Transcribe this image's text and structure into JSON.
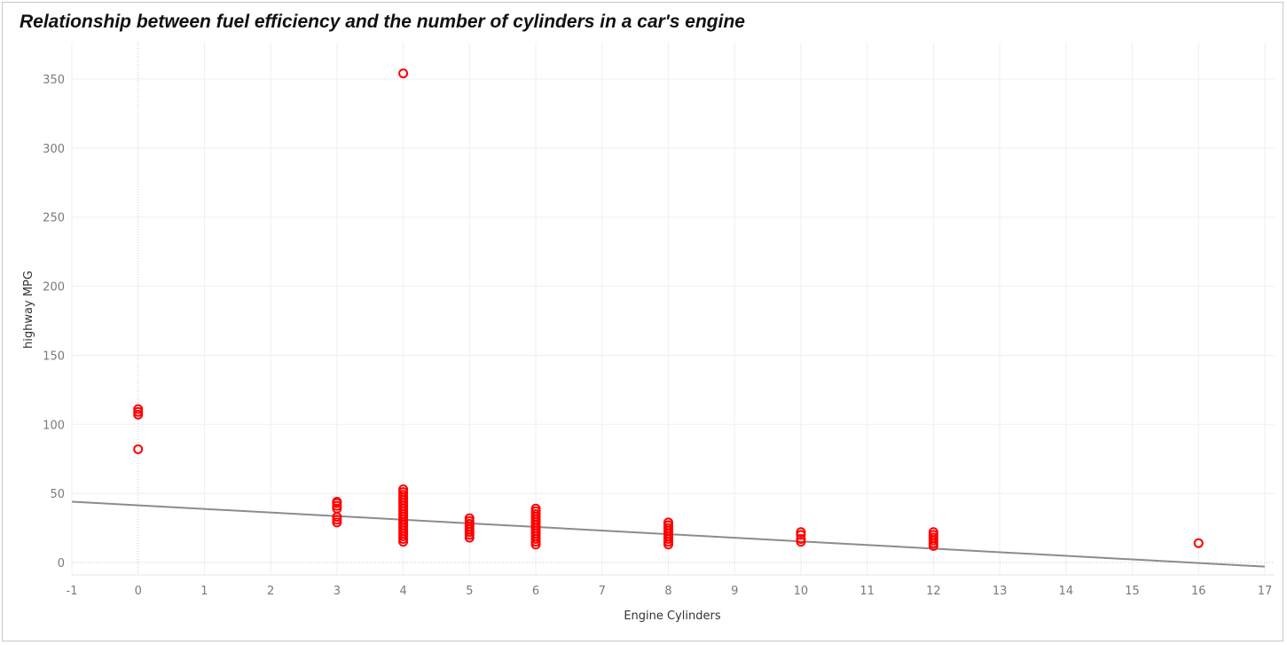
{
  "chart_data": {
    "type": "scatter",
    "title": "Relationship between fuel efficiency and the number of cylinders in a car's engine",
    "xlabel": "Engine Cylinders",
    "ylabel": "highway MPG",
    "xlim": [
      -1,
      17
    ],
    "ylim": [
      -8,
      370
    ],
    "xticks": [
      -1,
      0,
      1,
      2,
      3,
      4,
      5,
      6,
      7,
      8,
      9,
      10,
      11,
      12,
      13,
      14,
      15,
      16,
      17
    ],
    "yticks": [
      0,
      50,
      100,
      150,
      200,
      250,
      300,
      350
    ],
    "grid": true,
    "marker_color": "#ff0000",
    "trend_color": "#8c8c8c",
    "series": [
      {
        "points": [
          [
            0,
            82
          ],
          [
            0,
            107
          ],
          [
            0,
            109
          ],
          [
            0,
            111
          ],
          [
            3,
            29
          ],
          [
            3,
            31
          ],
          [
            3,
            33
          ],
          [
            3,
            39
          ],
          [
            3,
            41
          ],
          [
            3,
            43
          ],
          [
            3,
            44
          ],
          [
            4,
            15
          ],
          [
            4,
            17
          ],
          [
            4,
            19
          ],
          [
            4,
            21
          ],
          [
            4,
            23
          ],
          [
            4,
            25
          ],
          [
            4,
            27
          ],
          [
            4,
            29
          ],
          [
            4,
            31
          ],
          [
            4,
            33
          ],
          [
            4,
            35
          ],
          [
            4,
            37
          ],
          [
            4,
            39
          ],
          [
            4,
            41
          ],
          [
            4,
            43
          ],
          [
            4,
            45
          ],
          [
            4,
            47
          ],
          [
            4,
            49
          ],
          [
            4,
            51
          ],
          [
            4,
            53
          ],
          [
            4,
            354
          ],
          [
            5,
            18
          ],
          [
            5,
            20
          ],
          [
            5,
            22
          ],
          [
            5,
            24
          ],
          [
            5,
            26
          ],
          [
            5,
            28
          ],
          [
            5,
            30
          ],
          [
            5,
            32
          ],
          [
            6,
            13
          ],
          [
            6,
            15
          ],
          [
            6,
            17
          ],
          [
            6,
            19
          ],
          [
            6,
            21
          ],
          [
            6,
            23
          ],
          [
            6,
            25
          ],
          [
            6,
            27
          ],
          [
            6,
            29
          ],
          [
            6,
            31
          ],
          [
            6,
            33
          ],
          [
            6,
            35
          ],
          [
            6,
            37
          ],
          [
            6,
            39
          ],
          [
            8,
            13
          ],
          [
            8,
            15
          ],
          [
            8,
            17
          ],
          [
            8,
            19
          ],
          [
            8,
            21
          ],
          [
            8,
            23
          ],
          [
            8,
            25
          ],
          [
            8,
            27
          ],
          [
            8,
            29
          ],
          [
            10,
            15
          ],
          [
            10,
            17
          ],
          [
            10,
            20
          ],
          [
            10,
            22
          ],
          [
            12,
            12
          ],
          [
            12,
            14
          ],
          [
            12,
            16
          ],
          [
            12,
            18
          ],
          [
            12,
            20
          ],
          [
            12,
            22
          ],
          [
            16,
            14
          ]
        ]
      }
    ],
    "trend_line": {
      "x": [
        -1,
        17
      ],
      "y": [
        44,
        -3
      ]
    }
  }
}
